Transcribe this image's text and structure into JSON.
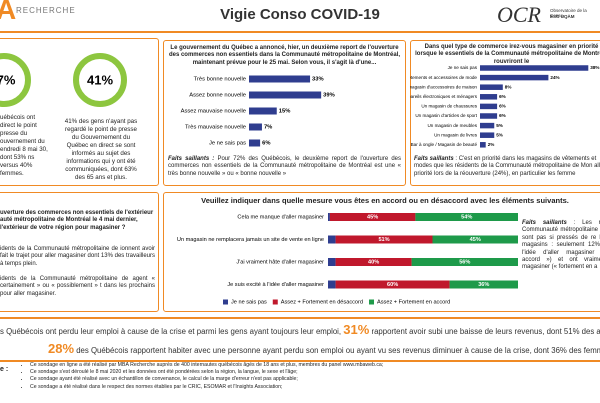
{
  "header": {
    "brand_mark": "A",
    "brand": "RECHERCHE",
    "title": "Vigie Conso COVID-19",
    "logo": "OCR",
    "logo_sub": "Observatoire de la Conso",
    "logo_sub2": "ESG UQÀM"
  },
  "watch": {
    "stat1": {
      "value": "7%",
      "text": "uébécois ont direct le point presse du ouvernement du endredi 8 mai 30, dont 53% ns versus 40% femmes."
    },
    "stat2": {
      "value": "41%",
      "text": "41% des gens n'ayant pas regardé le point de presse du Gouvernement du Québec en direct se sont informés au sujet des informations qui y ont été communiquées, dont 63% des 65 ans et plus."
    }
  },
  "reopening": {
    "question": "Le gouvernement du Québec a annoncé, hier, un deuxième report de l'ouverture des commerces non essentiels dans la Communauté métropolitaine de Montréal, maintenant prévue pour le 25 mai. Selon vous, il s'agit là d'une...",
    "chart": {
      "type": "bar",
      "categories": [
        "Très bonne nouvelle",
        "Assez bonne nouvelle",
        "Assez mauvaise nouvelle",
        "Très mauvaise nouvelle",
        "Je ne sais pas"
      ],
      "values": [
        33,
        39,
        15,
        7,
        6
      ],
      "value_labels": [
        "33%",
        "39%",
        "15%",
        "7%",
        "6%"
      ],
      "color": "#2f3d8f"
    },
    "highlight_label": "Faits saillants :",
    "highlight": "Pour 72% des Québécois, le deuxième report de l'ouverture des commerces non essentiels de la Communauté métropolitaine de Montréal est une « très bonne nouvelle » ou « bonne nouvelle »"
  },
  "priority": {
    "question": "Dans quel type de commerce irez-vous magasiner en priorité lorsque le essentiels de la Communauté métropolitaine de Montréal rouvriront le",
    "chart": {
      "type": "bar",
      "categories": [
        "Je ne sais pas",
        "Un magasin de vêtements et accessoires de mode",
        "Un magasin d'accessoires de maison",
        "Un magasin d'appareils électroniques et ménagers",
        "Un magasin de chaussures",
        "Un magasin d'articles de sport",
        "Un magasin de meubles",
        "Un magasin de livres",
        "Salon de coiffure / Bar à ongle / Magasin de beauté"
      ],
      "values": [
        38,
        24,
        8,
        6,
        6,
        6,
        5,
        5,
        2
      ],
      "value_labels": [
        "38%",
        "24%",
        "8%",
        "6%",
        "6%",
        "6%",
        "5%",
        "5%",
        "2%"
      ],
      "color": "#2f3d8f"
    },
    "highlight_label": "Faits saillants",
    "highlight": ": C'est en priorité dans les magasins de vêtements et modes que les résidents de la Communauté métropolitaine de Mon aller en priorité lors de la réouverture (24%), en particulier les femme"
  },
  "outside": {
    "question": "uverture des commerces non essentiels de l'extérieur auté métropolitaine de Montréal le 4 mai dernier, l'extérieur de votre région pour magasiner ?",
    "paragraphs": [
      "idents de la Communauté métropolitaine de ionnent avoir fait le trajet pour aller magasiner dont 13% des travailleurs à temps plein.",
      "idents de la Communauté métropolitaine de agent « certainement » ou « possiblement » t dans les prochains pour aller magasiner."
    ]
  },
  "agreement": {
    "title": "Veuillez indiquer dans quelle mesure vous êtes en accord ou en désaccord avec les éléments suivants.",
    "chart": {
      "type": "stacked_bar",
      "categories": [
        "Cela me manque d'aller magasiner",
        "Un magasin ne remplacera jamais un site de vente en ligne",
        "J'ai vraiment hâte d'aller magasiner",
        "Je suis excité à l'idée d'aller magasiner"
      ],
      "series": [
        {
          "name": "Je ne sais pas",
          "color": "#2f3d8f",
          "values": [
            1,
            4,
            4,
            4
          ]
        },
        {
          "name": "Assez + Fortement en désaccord",
          "color": "#c0182c",
          "values": [
            45,
            51,
            40,
            60
          ],
          "value_labels": [
            "45%",
            "51%",
            "40%",
            "60%"
          ]
        },
        {
          "name": "Assez + Fortement en accord",
          "color": "#1e9a4a",
          "values": [
            54,
            45,
            56,
            36
          ],
          "value_labels": [
            "54%",
            "45%",
            "56%",
            "36%"
          ]
        }
      ]
    },
    "highlight_label": "Faits saillants",
    "highlight": ": Les rés Communauté métropolitaine ne sont pas si pressés de re les magasins : seulement 12% à l'idée d'aller magasiner (« accord ») et ont vraiment magasiner (« fortement en a"
  },
  "jobs": {
    "line1_pre": "s Québécois ont perdu leur emploi à cause de la crise et parmi les gens ayant toujours leur emploi,",
    "line1_stat": "31%",
    "line1_post": "rapportent avoir subi une baisse de leurs revenus, dont 51% des ang",
    "line2_stat": "28%",
    "line2_post": "des Québécois rapportent habiter avec une personne ayant perdu son emploi ou ayant vu ses revenus diminuer à cause de la crise, dont 36% des femmes."
  },
  "notes": {
    "title": "e :",
    "items": [
      "Ce sondage en ligne a été réalisé par MBA Recherche auprès de 400 internautes québécois âgés de 18 ans et plus, membres du panel www.mbaweb.ca;",
      "Ce sondage s'est déroulé le 8 mai 2020 et les données ont été pondérées selon la région, la langue, le sexe et l'âge;",
      "Ce sondage ayant été réalisé avec un échantillon de convenance, le calcul de la marge d'erreur n'est pas applicable;",
      "Ce sondage a été réalisé dans le respect des normes établies par le CRIC, ESOMAR et l'Insights Association;"
    ]
  }
}
